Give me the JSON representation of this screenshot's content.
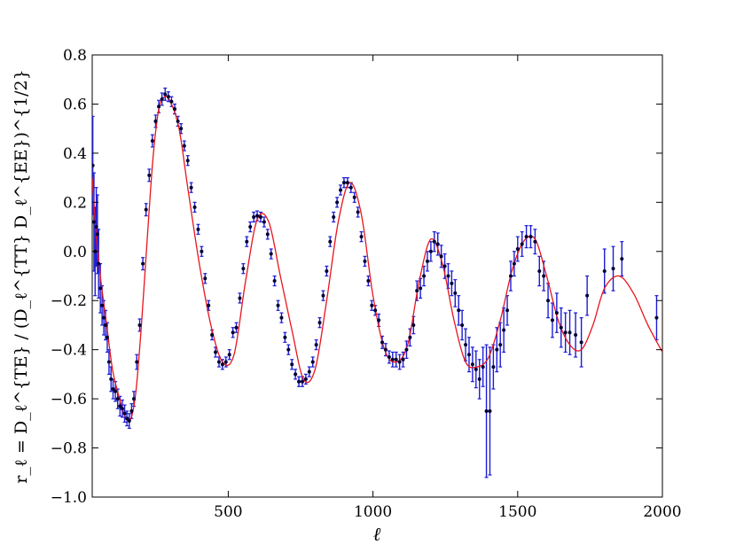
{
  "chart_data": {
    "type": "scatter",
    "title": "",
    "xlabel": "ℓ",
    "ylabel": "r_ℓ = D_ℓ^{TE} / (D_ℓ^{TT} D_ℓ^{EE})^{1/2}",
    "xlim": [
      30,
      2000
    ],
    "ylim": [
      -1.0,
      0.8
    ],
    "xticks": [
      500,
      1000,
      1500,
      2000
    ],
    "xtick_labels": [
      "500",
      "1000",
      "1500",
      "2000"
    ],
    "yticks": [
      -1.0,
      -0.8,
      -0.6,
      -0.4,
      -0.2,
      0.0,
      0.2,
      0.4,
      0.6,
      0.8
    ],
    "ytick_labels": [
      "−1.0",
      "−0.8",
      "−0.6",
      "−0.4",
      "−0.2",
      "0.0",
      "0.2",
      "0.4",
      "0.6",
      "0.8"
    ],
    "grid": false,
    "legend": "none",
    "colors": {
      "model": "#e8141c",
      "data": "#000033",
      "errorbar": "#1c1cd6"
    },
    "model_curve": {
      "x": [
        30,
        45,
        60,
        80,
        100,
        120,
        140,
        160,
        180,
        200,
        220,
        240,
        260,
        280,
        300,
        330,
        360,
        400,
        440,
        480,
        520,
        560,
        600,
        640,
        680,
        720,
        760,
        800,
        840,
        880,
        920,
        960,
        1000,
        1040,
        1080,
        1120,
        1160,
        1200,
        1240,
        1280,
        1320,
        1360,
        1400,
        1440,
        1480,
        1520,
        1560,
        1600,
        1640,
        1680,
        1720,
        1760,
        1800,
        1850,
        1900,
        1950,
        2000
      ],
      "y": [
        0.3,
        0.05,
        -0.12,
        -0.3,
        -0.48,
        -0.58,
        -0.66,
        -0.69,
        -0.58,
        -0.3,
        0.05,
        0.38,
        0.58,
        0.63,
        0.61,
        0.5,
        0.26,
        -0.05,
        -0.3,
        -0.45,
        -0.42,
        -0.12,
        0.13,
        0.12,
        -0.1,
        -0.32,
        -0.52,
        -0.48,
        -0.2,
        0.12,
        0.28,
        0.15,
        -0.18,
        -0.4,
        -0.45,
        -0.38,
        -0.12,
        0.05,
        -0.05,
        -0.28,
        -0.45,
        -0.47,
        -0.43,
        -0.28,
        -0.08,
        0.04,
        0.05,
        -0.1,
        -0.28,
        -0.38,
        -0.4,
        -0.3,
        -0.15,
        -0.1,
        -0.17,
        -0.3,
        -0.41
      ]
    },
    "data_points": [
      {
        "x": 32,
        "y": 0.35,
        "err": 0.2
      },
      {
        "x": 36,
        "y": 0.12,
        "err": 0.2
      },
      {
        "x": 40,
        "y": 0.0,
        "err": 0.18
      },
      {
        "x": 44,
        "y": 0.1,
        "err": 0.16
      },
      {
        "x": 48,
        "y": 0.07,
        "err": 0.16
      },
      {
        "x": 52,
        "y": -0.05,
        "err": 0.14
      },
      {
        "x": 58,
        "y": -0.15,
        "err": 0.1
      },
      {
        "x": 64,
        "y": -0.22,
        "err": 0.08
      },
      {
        "x": 70,
        "y": -0.27,
        "err": 0.07
      },
      {
        "x": 76,
        "y": -0.3,
        "err": 0.06
      },
      {
        "x": 82,
        "y": -0.35,
        "err": 0.06
      },
      {
        "x": 88,
        "y": -0.45,
        "err": 0.05
      },
      {
        "x": 95,
        "y": -0.52,
        "err": 0.05
      },
      {
        "x": 102,
        "y": -0.56,
        "err": 0.04
      },
      {
        "x": 110,
        "y": -0.57,
        "err": 0.04
      },
      {
        "x": 118,
        "y": -0.6,
        "err": 0.04
      },
      {
        "x": 126,
        "y": -0.63,
        "err": 0.04
      },
      {
        "x": 134,
        "y": -0.64,
        "err": 0.035
      },
      {
        "x": 142,
        "y": -0.66,
        "err": 0.035
      },
      {
        "x": 150,
        "y": -0.68,
        "err": 0.03
      },
      {
        "x": 158,
        "y": -0.69,
        "err": 0.03
      },
      {
        "x": 166,
        "y": -0.65,
        "err": 0.03
      },
      {
        "x": 174,
        "y": -0.6,
        "err": 0.03
      },
      {
        "x": 184,
        "y": -0.45,
        "err": 0.03
      },
      {
        "x": 194,
        "y": -0.3,
        "err": 0.025
      },
      {
        "x": 205,
        "y": -0.05,
        "err": 0.025
      },
      {
        "x": 216,
        "y": 0.17,
        "err": 0.025
      },
      {
        "x": 227,
        "y": 0.31,
        "err": 0.025
      },
      {
        "x": 238,
        "y": 0.45,
        "err": 0.025
      },
      {
        "x": 249,
        "y": 0.53,
        "err": 0.025
      },
      {
        "x": 260,
        "y": 0.59,
        "err": 0.025
      },
      {
        "x": 271,
        "y": 0.62,
        "err": 0.025
      },
      {
        "x": 282,
        "y": 0.64,
        "err": 0.025
      },
      {
        "x": 293,
        "y": 0.63,
        "err": 0.02
      },
      {
        "x": 304,
        "y": 0.61,
        "err": 0.02
      },
      {
        "x": 315,
        "y": 0.58,
        "err": 0.02
      },
      {
        "x": 326,
        "y": 0.53,
        "err": 0.02
      },
      {
        "x": 337,
        "y": 0.5,
        "err": 0.02
      },
      {
        "x": 348,
        "y": 0.43,
        "err": 0.02
      },
      {
        "x": 360,
        "y": 0.37,
        "err": 0.02
      },
      {
        "x": 372,
        "y": 0.26,
        "err": 0.02
      },
      {
        "x": 384,
        "y": 0.18,
        "err": 0.02
      },
      {
        "x": 396,
        "y": 0.09,
        "err": 0.02
      },
      {
        "x": 408,
        "y": 0.0,
        "err": 0.02
      },
      {
        "x": 420,
        "y": -0.11,
        "err": 0.02
      },
      {
        "x": 432,
        "y": -0.22,
        "err": 0.02
      },
      {
        "x": 444,
        "y": -0.34,
        "err": 0.02
      },
      {
        "x": 456,
        "y": -0.41,
        "err": 0.02
      },
      {
        "x": 468,
        "y": -0.45,
        "err": 0.02
      },
      {
        "x": 480,
        "y": -0.46,
        "err": 0.02
      },
      {
        "x": 492,
        "y": -0.45,
        "err": 0.02
      },
      {
        "x": 504,
        "y": -0.42,
        "err": 0.02
      },
      {
        "x": 516,
        "y": -0.33,
        "err": 0.02
      },
      {
        "x": 528,
        "y": -0.31,
        "err": 0.02
      },
      {
        "x": 540,
        "y": -0.19,
        "err": 0.02
      },
      {
        "x": 552,
        "y": -0.07,
        "err": 0.02
      },
      {
        "x": 564,
        "y": 0.04,
        "err": 0.02
      },
      {
        "x": 576,
        "y": 0.1,
        "err": 0.02
      },
      {
        "x": 588,
        "y": 0.14,
        "err": 0.02
      },
      {
        "x": 600,
        "y": 0.145,
        "err": 0.02
      },
      {
        "x": 612,
        "y": 0.14,
        "err": 0.02
      },
      {
        "x": 624,
        "y": 0.12,
        "err": 0.02
      },
      {
        "x": 636,
        "y": 0.07,
        "err": 0.02
      },
      {
        "x": 648,
        "y": -0.01,
        "err": 0.02
      },
      {
        "x": 660,
        "y": -0.12,
        "err": 0.02
      },
      {
        "x": 672,
        "y": -0.22,
        "err": 0.02
      },
      {
        "x": 684,
        "y": -0.27,
        "err": 0.02
      },
      {
        "x": 696,
        "y": -0.35,
        "err": 0.02
      },
      {
        "x": 708,
        "y": -0.4,
        "err": 0.02
      },
      {
        "x": 720,
        "y": -0.46,
        "err": 0.02
      },
      {
        "x": 732,
        "y": -0.5,
        "err": 0.02
      },
      {
        "x": 744,
        "y": -0.53,
        "err": 0.02
      },
      {
        "x": 756,
        "y": -0.53,
        "err": 0.02
      },
      {
        "x": 768,
        "y": -0.52,
        "err": 0.02
      },
      {
        "x": 780,
        "y": -0.49,
        "err": 0.02
      },
      {
        "x": 792,
        "y": -0.45,
        "err": 0.02
      },
      {
        "x": 804,
        "y": -0.38,
        "err": 0.02
      },
      {
        "x": 816,
        "y": -0.29,
        "err": 0.02
      },
      {
        "x": 828,
        "y": -0.18,
        "err": 0.02
      },
      {
        "x": 840,
        "y": -0.08,
        "err": 0.02
      },
      {
        "x": 852,
        "y": 0.04,
        "err": 0.02
      },
      {
        "x": 864,
        "y": 0.14,
        "err": 0.02
      },
      {
        "x": 876,
        "y": 0.2,
        "err": 0.02
      },
      {
        "x": 888,
        "y": 0.25,
        "err": 0.02
      },
      {
        "x": 900,
        "y": 0.28,
        "err": 0.02
      },
      {
        "x": 912,
        "y": 0.28,
        "err": 0.02
      },
      {
        "x": 924,
        "y": 0.26,
        "err": 0.02
      },
      {
        "x": 936,
        "y": 0.22,
        "err": 0.02
      },
      {
        "x": 948,
        "y": 0.16,
        "err": 0.02
      },
      {
        "x": 960,
        "y": 0.06,
        "err": 0.02
      },
      {
        "x": 972,
        "y": -0.04,
        "err": 0.02
      },
      {
        "x": 984,
        "y": -0.12,
        "err": 0.02
      },
      {
        "x": 996,
        "y": -0.22,
        "err": 0.02
      },
      {
        "x": 1008,
        "y": -0.24,
        "err": 0.02
      },
      {
        "x": 1020,
        "y": -0.28,
        "err": 0.025
      },
      {
        "x": 1032,
        "y": -0.37,
        "err": 0.025
      },
      {
        "x": 1044,
        "y": -0.4,
        "err": 0.025
      },
      {
        "x": 1056,
        "y": -0.43,
        "err": 0.025
      },
      {
        "x": 1068,
        "y": -0.44,
        "err": 0.03
      },
      {
        "x": 1080,
        "y": -0.44,
        "err": 0.03
      },
      {
        "x": 1092,
        "y": -0.45,
        "err": 0.03
      },
      {
        "x": 1104,
        "y": -0.44,
        "err": 0.03
      },
      {
        "x": 1116,
        "y": -0.4,
        "err": 0.035
      },
      {
        "x": 1128,
        "y": -0.35,
        "err": 0.035
      },
      {
        "x": 1140,
        "y": -0.3,
        "err": 0.035
      },
      {
        "x": 1152,
        "y": -0.16,
        "err": 0.04
      },
      {
        "x": 1164,
        "y": -0.15,
        "err": 0.04
      },
      {
        "x": 1176,
        "y": -0.1,
        "err": 0.04
      },
      {
        "x": 1188,
        "y": -0.04,
        "err": 0.04
      },
      {
        "x": 1200,
        "y": 0.0,
        "err": 0.04
      },
      {
        "x": 1212,
        "y": 0.04,
        "err": 0.04
      },
      {
        "x": 1224,
        "y": 0.03,
        "err": 0.045
      },
      {
        "x": 1236,
        "y": -0.02,
        "err": 0.045
      },
      {
        "x": 1248,
        "y": -0.06,
        "err": 0.05
      },
      {
        "x": 1260,
        "y": -0.1,
        "err": 0.05
      },
      {
        "x": 1272,
        "y": -0.13,
        "err": 0.05
      },
      {
        "x": 1284,
        "y": -0.17,
        "err": 0.055
      },
      {
        "x": 1296,
        "y": -0.24,
        "err": 0.06
      },
      {
        "x": 1308,
        "y": -0.3,
        "err": 0.06
      },
      {
        "x": 1320,
        "y": -0.38,
        "err": 0.065
      },
      {
        "x": 1332,
        "y": -0.42,
        "err": 0.07
      },
      {
        "x": 1344,
        "y": -0.46,
        "err": 0.07
      },
      {
        "x": 1356,
        "y": -0.48,
        "err": 0.075
      },
      {
        "x": 1368,
        "y": -0.52,
        "err": 0.08
      },
      {
        "x": 1380,
        "y": -0.47,
        "err": 0.08
      },
      {
        "x": 1392,
        "y": -0.65,
        "err": 0.27
      },
      {
        "x": 1404,
        "y": -0.65,
        "err": 0.26
      },
      {
        "x": 1416,
        "y": -0.47,
        "err": 0.09
      },
      {
        "x": 1428,
        "y": -0.4,
        "err": 0.09
      },
      {
        "x": 1440,
        "y": -0.38,
        "err": 0.09
      },
      {
        "x": 1452,
        "y": -0.32,
        "err": 0.09
      },
      {
        "x": 1464,
        "y": -0.24,
        "err": 0.06
      },
      {
        "x": 1476,
        "y": -0.1,
        "err": 0.06
      },
      {
        "x": 1488,
        "y": -0.05,
        "err": 0.05
      },
      {
        "x": 1500,
        "y": 0.01,
        "err": 0.05
      },
      {
        "x": 1515,
        "y": 0.03,
        "err": 0.05
      },
      {
        "x": 1530,
        "y": 0.06,
        "err": 0.045
      },
      {
        "x": 1545,
        "y": 0.06,
        "err": 0.045
      },
      {
        "x": 1560,
        "y": 0.04,
        "err": 0.05
      },
      {
        "x": 1575,
        "y": -0.08,
        "err": 0.06
      },
      {
        "x": 1590,
        "y": -0.1,
        "err": 0.06
      },
      {
        "x": 1605,
        "y": -0.2,
        "err": 0.07
      },
      {
        "x": 1620,
        "y": -0.28,
        "err": 0.07
      },
      {
        "x": 1635,
        "y": -0.25,
        "err": 0.08
      },
      {
        "x": 1650,
        "y": -0.31,
        "err": 0.08
      },
      {
        "x": 1665,
        "y": -0.33,
        "err": 0.08
      },
      {
        "x": 1680,
        "y": -0.33,
        "err": 0.09
      },
      {
        "x": 1700,
        "y": -0.34,
        "err": 0.09
      },
      {
        "x": 1720,
        "y": -0.37,
        "err": 0.1
      },
      {
        "x": 1740,
        "y": -0.18,
        "err": 0.08
      },
      {
        "x": 1800,
        "y": -0.08,
        "err": 0.09
      },
      {
        "x": 1830,
        "y": -0.07,
        "err": 0.09
      },
      {
        "x": 1860,
        "y": -0.03,
        "err": 0.07
      },
      {
        "x": 1980,
        "y": -0.27,
        "err": 0.09
      }
    ]
  }
}
